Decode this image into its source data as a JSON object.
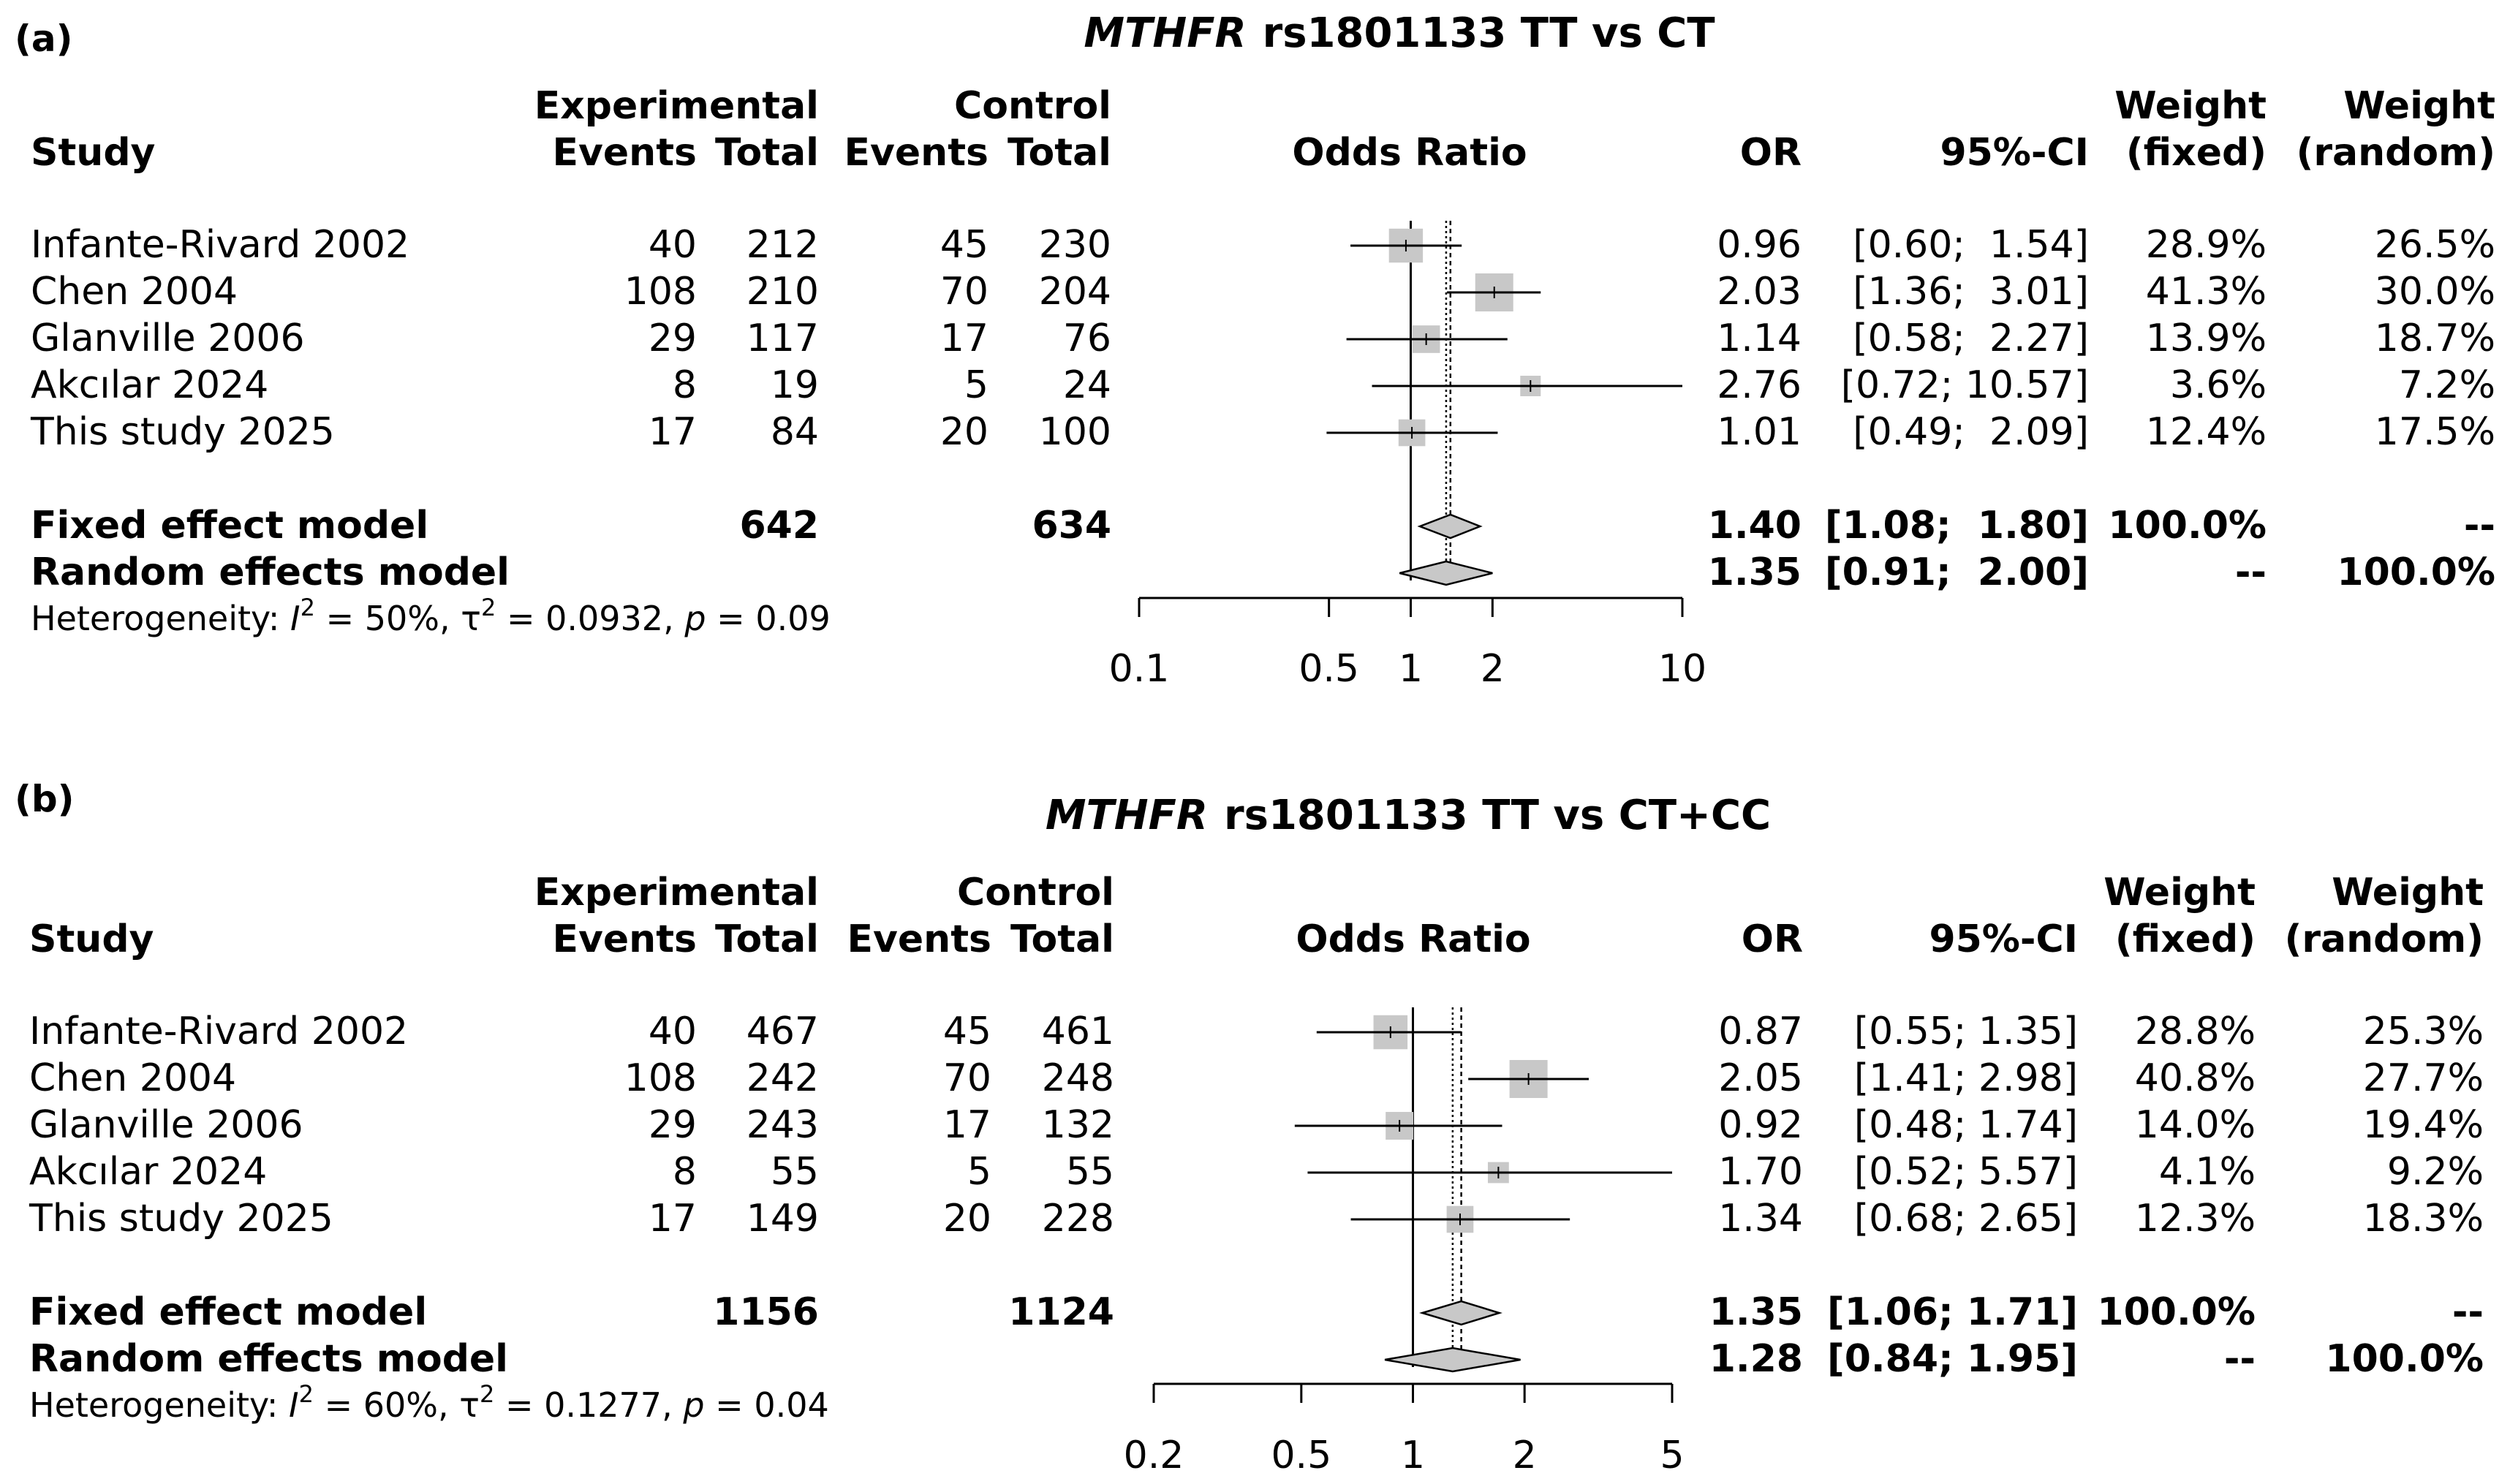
{
  "chart_data": [
    {
      "type": "forest",
      "panel": "(a)",
      "title_italic": "MTHFR",
      "title_rest": "rs1801133 TT vs CT",
      "headers": {
        "group1": "Experimental",
        "group2": "Control",
        "study": "Study",
        "events": "Events",
        "total": "Total",
        "or_col": "Odds Ratio",
        "or": "OR",
        "ci": "95%-CI",
        "weight": "Weight",
        "fixed": "(fixed)",
        "random": "(random)"
      },
      "studies": [
        {
          "name": "Infante-Rivard 2002",
          "e_events": "40",
          "e_total": "212",
          "c_events": "45",
          "c_total": "230",
          "or": 0.96,
          "lo": 0.6,
          "hi": 1.54,
          "or_text": "0.96",
          "ci_text": "[0.60;  1.54]",
          "w_fixed": "28.9%",
          "w_random": "26.5%"
        },
        {
          "name": "Chen 2004",
          "e_events": "108",
          "e_total": "210",
          "c_events": "70",
          "c_total": "204",
          "or": 2.03,
          "lo": 1.36,
          "hi": 3.01,
          "or_text": "2.03",
          "ci_text": "[1.36;  3.01]",
          "w_fixed": "41.3%",
          "w_random": "30.0%"
        },
        {
          "name": "Glanville 2006",
          "e_events": "29",
          "e_total": "117",
          "c_events": "17",
          "c_total": "76",
          "or": 1.14,
          "lo": 0.58,
          "hi": 2.27,
          "or_text": "1.14",
          "ci_text": "[0.58;  2.27]",
          "w_fixed": "13.9%",
          "w_random": "18.7%"
        },
        {
          "name": "Akcılar 2024",
          "e_events": "8",
          "e_total": "19",
          "c_events": "5",
          "c_total": "24",
          "or": 2.76,
          "lo": 0.72,
          "hi": 10.57,
          "or_text": "2.76",
          "ci_text": "[0.72; 10.57]",
          "w_fixed": "3.6%",
          "w_random": "7.2%"
        },
        {
          "name": "This study 2025",
          "e_events": "17",
          "e_total": "84",
          "c_events": "20",
          "c_total": "100",
          "or": 1.01,
          "lo": 0.49,
          "hi": 2.09,
          "or_text": "1.01",
          "ci_text": "[0.49;  2.09]",
          "w_fixed": "12.4%",
          "w_random": "17.5%"
        }
      ],
      "fixed": {
        "label": "Fixed effect model",
        "e_total": "642",
        "c_total": "634",
        "or": 1.4,
        "lo": 1.08,
        "hi": 1.8,
        "or_text": "1.40",
        "ci_text": "[1.08;  1.80]",
        "w_fixed": "100.0%",
        "w_random": "--"
      },
      "random": {
        "label": "Random effects model",
        "or": 1.35,
        "lo": 0.91,
        "hi": 2.0,
        "or_text": "1.35",
        "ci_text": "[0.91;  2.00]",
        "w_fixed": "--",
        "w_random": "100.0%"
      },
      "heterogeneity": {
        "prefix": "Heterogeneity: ",
        "i2_sym": "I",
        "i2_sup": "2",
        "i2_val": " = 50%, ",
        "tau_sym": "τ",
        "tau_sup": "2",
        "tau_val": " = 0.0932, ",
        "p_sym": "p",
        "p_val": " = 0.09"
      },
      "axis": {
        "scale": "log",
        "ticks": [
          0.1,
          0.5,
          1,
          2,
          10
        ],
        "tick_labels": [
          "0.1",
          "0.5",
          "1",
          "2",
          "10"
        ],
        "xlim": [
          0.1,
          10
        ]
      }
    },
    {
      "type": "forest",
      "panel": "(b)",
      "title_italic": "MTHFR",
      "title_rest": "rs1801133 TT vs CT+CC",
      "headers": {
        "group1": "Experimental",
        "group2": "Control",
        "study": "Study",
        "events": "Events",
        "total": "Total",
        "or_col": "Odds Ratio",
        "or": "OR",
        "ci": "95%-CI",
        "weight": "Weight",
        "fixed": "(fixed)",
        "random": "(random)"
      },
      "studies": [
        {
          "name": "Infante-Rivard 2002",
          "e_events": "40",
          "e_total": "467",
          "c_events": "45",
          "c_total": "461",
          "or": 0.87,
          "lo": 0.55,
          "hi": 1.35,
          "or_text": "0.87",
          "ci_text": "[0.55; 1.35]",
          "w_fixed": "28.8%",
          "w_random": "25.3%"
        },
        {
          "name": "Chen 2004",
          "e_events": "108",
          "e_total": "242",
          "c_events": "70",
          "c_total": "248",
          "or": 2.05,
          "lo": 1.41,
          "hi": 2.98,
          "or_text": "2.05",
          "ci_text": "[1.41; 2.98]",
          "w_fixed": "40.8%",
          "w_random": "27.7%"
        },
        {
          "name": "Glanville 2006",
          "e_events": "29",
          "e_total": "243",
          "c_events": "17",
          "c_total": "132",
          "or": 0.92,
          "lo": 0.48,
          "hi": 1.74,
          "or_text": "0.92",
          "ci_text": "[0.48; 1.74]",
          "w_fixed": "14.0%",
          "w_random": "19.4%"
        },
        {
          "name": "Akcılar 2024",
          "e_events": "8",
          "e_total": "55",
          "c_events": "5",
          "c_total": "55",
          "or": 1.7,
          "lo": 0.52,
          "hi": 5.57,
          "or_text": "1.70",
          "ci_text": "[0.52; 5.57]",
          "w_fixed": "4.1%",
          "w_random": "9.2%"
        },
        {
          "name": "This study 2025",
          "e_events": "17",
          "e_total": "149",
          "c_events": "20",
          "c_total": "228",
          "or": 1.34,
          "lo": 0.68,
          "hi": 2.65,
          "or_text": "1.34",
          "ci_text": "[0.68; 2.65]",
          "w_fixed": "12.3%",
          "w_random": "18.3%"
        }
      ],
      "fixed": {
        "label": "Fixed effect model",
        "e_total": "1156",
        "c_total": "1124",
        "or": 1.35,
        "lo": 1.06,
        "hi": 1.71,
        "or_text": "1.35",
        "ci_text": "[1.06; 1.71]",
        "w_fixed": "100.0%",
        "w_random": "--"
      },
      "random": {
        "label": "Random effects model",
        "or": 1.28,
        "lo": 0.84,
        "hi": 1.95,
        "or_text": "1.28",
        "ci_text": "[0.84; 1.95]",
        "w_fixed": "--",
        "w_random": "100.0%"
      },
      "heterogeneity": {
        "prefix": "Heterogeneity: ",
        "i2_sym": "I",
        "i2_sup": "2",
        "i2_val": " = 60%, ",
        "tau_sym": "τ",
        "tau_sup": "2",
        "tau_val": " = 0.1277, ",
        "p_sym": "p",
        "p_val": " = 0.04"
      },
      "axis": {
        "scale": "log",
        "ticks": [
          0.2,
          0.5,
          1,
          2,
          5
        ],
        "tick_labels": [
          "0.2",
          "0.5",
          "1",
          "2",
          "5"
        ],
        "xlim": [
          0.2,
          5
        ]
      }
    }
  ]
}
